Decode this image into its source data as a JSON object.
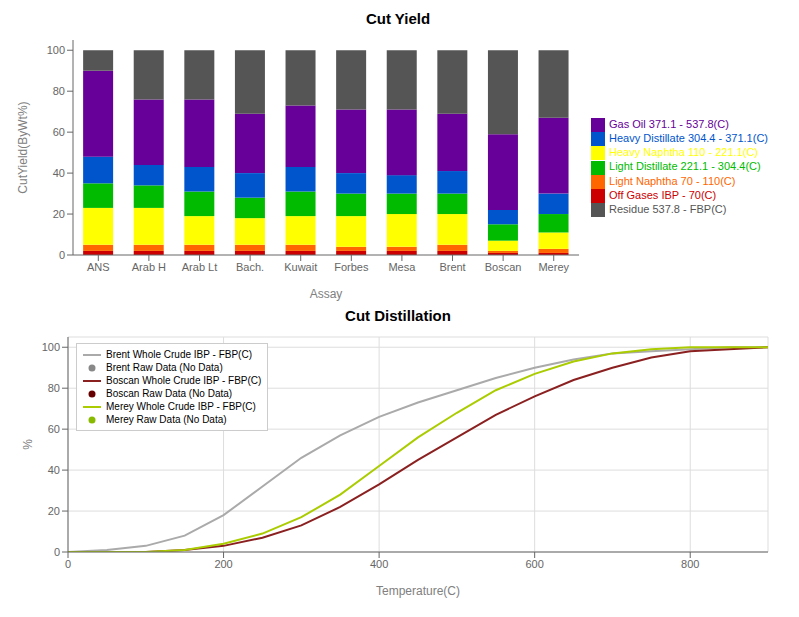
{
  "chart_data": [
    {
      "type": "bar",
      "title": "Cut Yield",
      "x_label": "Assay",
      "y_label": "CutYield(ByWt%)",
      "categories": [
        "ANS",
        "Arab H",
        "Arab Lt",
        "Bach.",
        "Kuwait",
        "Forbes",
        "Mesa",
        "Brent",
        "Boscan",
        "Merey"
      ],
      "series": [
        {
          "name": "Off Gases IBP - 70(C)",
          "color": "#cc0000",
          "values": [
            2,
            2,
            2,
            2,
            2,
            2,
            2,
            2,
            1,
            1
          ]
        },
        {
          "name": "Light Naphtha 70 - 110(C)",
          "color": "#ff6600",
          "values": [
            3,
            3,
            3,
            3,
            3,
            2,
            2,
            3,
            1,
            2
          ]
        },
        {
          "name": "Heavy Naphtha 110 - 221.1(C)",
          "color": "#ffff00",
          "values": [
            18,
            18,
            14,
            13,
            14,
            15,
            16,
            15,
            5,
            8
          ]
        },
        {
          "name": "Light Distillate 221.1 - 304.4(C)",
          "color": "#00bb00",
          "values": [
            12,
            11,
            12,
            10,
            12,
            11,
            10,
            10,
            8,
            9
          ]
        },
        {
          "name": "Heavy Distillate 304.4 - 371.1(C)",
          "color": "#0055cc",
          "values": [
            13,
            10,
            12,
            12,
            12,
            10,
            9,
            11,
            7,
            10
          ]
        },
        {
          "name": "Gas Oil 371.1 - 537.8(C)",
          "color": "#660099",
          "values": [
            42,
            32,
            33,
            29,
            30,
            31,
            32,
            28,
            37,
            37
          ]
        },
        {
          "name": "Residue 537.8 - FBP(C)",
          "color": "#555555",
          "values": [
            10,
            24,
            24,
            31,
            27,
            29,
            29,
            31,
            41,
            33
          ]
        }
      ],
      "stacked": true,
      "ylim": [
        0,
        105
      ],
      "yticks": [
        0,
        20,
        40,
        60,
        80,
        100
      ],
      "grid": false,
      "legend": "right"
    },
    {
      "type": "line",
      "title": "Cut Distillation",
      "x_label": "Temperature(C)",
      "y_label": "%",
      "x": [
        0,
        50,
        100,
        150,
        200,
        250,
        300,
        350,
        400,
        450,
        500,
        550,
        600,
        650,
        700,
        750,
        800,
        850,
        900
      ],
      "series": [
        {
          "name": "Brent Whole Crude IBP - FBP(C)",
          "color": "#aaaaaa",
          "line_style": "solid",
          "marker": "none",
          "values": [
            0,
            1,
            3,
            8,
            18,
            32,
            46,
            57,
            66,
            73,
            79,
            85,
            90,
            94,
            97,
            98,
            99,
            100,
            100
          ]
        },
        {
          "name": "Brent Raw Data (No Data)",
          "color": "#888888",
          "line_style": "none",
          "marker": "o",
          "values": [
            null,
            null,
            null,
            null,
            null,
            null,
            null,
            null,
            null,
            null,
            null,
            null,
            null,
            null,
            null,
            null,
            null,
            null,
            null
          ]
        },
        {
          "name": "Boscan Whole Crude IBP - FBP(C)",
          "color": "#8b2020",
          "line_style": "solid",
          "marker": "none",
          "values": [
            0,
            0,
            0,
            1,
            3,
            7,
            13,
            22,
            33,
            45,
            56,
            67,
            76,
            84,
            90,
            95,
            98,
            99,
            100
          ]
        },
        {
          "name": "Boscan Raw Data (No Data)",
          "color": "#660000",
          "line_style": "none",
          "marker": "o",
          "values": [
            null,
            null,
            null,
            null,
            null,
            null,
            null,
            null,
            null,
            null,
            null,
            null,
            null,
            null,
            null,
            null,
            null,
            null,
            null
          ]
        },
        {
          "name": "Merey Whole Crude IBP - FBP(C)",
          "color": "#aacc00",
          "line_style": "solid",
          "marker": "none",
          "values": [
            0,
            0,
            0,
            1,
            4,
            9,
            17,
            28,
            42,
            56,
            68,
            79,
            87,
            93,
            97,
            99,
            100,
            100,
            100
          ]
        },
        {
          "name": "Merey Raw Data (No Data)",
          "color": "#88bb00",
          "line_style": "none",
          "marker": "o",
          "values": [
            null,
            null,
            null,
            null,
            null,
            null,
            null,
            null,
            null,
            null,
            null,
            null,
            null,
            null,
            null,
            null,
            null,
            null,
            null
          ]
        }
      ],
      "xlim": [
        0,
        900
      ],
      "xticks": [
        0,
        200,
        400,
        600,
        800
      ],
      "ylim": [
        0,
        105
      ],
      "yticks": [
        0,
        20,
        40,
        60,
        80,
        100
      ],
      "grid": true,
      "legend": "upper left"
    }
  ]
}
